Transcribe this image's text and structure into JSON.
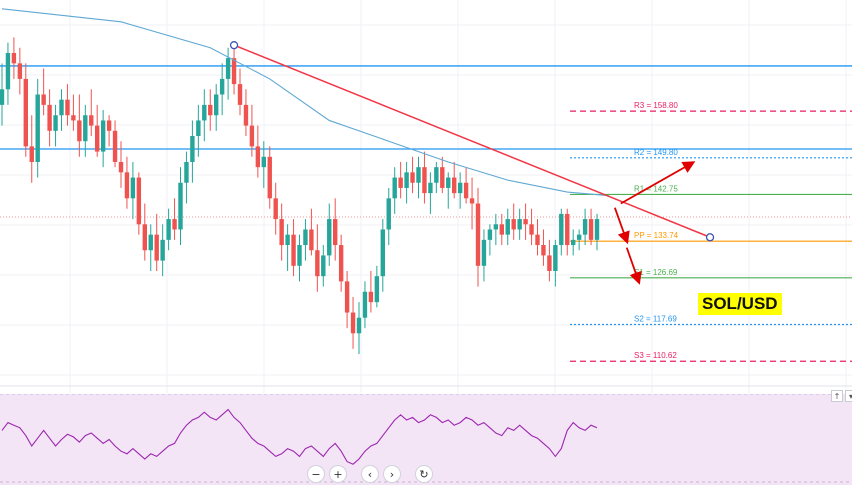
{
  "pair_label": "SOL/USD",
  "chart_data": {
    "type": "candlestick",
    "symbol": "SOL/USD",
    "colors": {
      "up": "#26a69a",
      "down": "#ef5350",
      "ma": "#5fa8d3",
      "trendline": "#f23645",
      "arrow": "#e00000",
      "pivot_r": "#e91e63",
      "pivot_r2": "#2196f3",
      "pivot_r1": "#4caf50",
      "pivot_pp": "#ff9800",
      "h_line": "#2196f3",
      "rsi_line": "#9c27b0",
      "rsi_bg": "#f3e5f5"
    },
    "pivots": [
      {
        "label": "R3 = 158.80",
        "value": 158.8,
        "style": "dashed",
        "color": "#e91e63"
      },
      {
        "label": "R2 = 149.80",
        "value": 149.8,
        "style": "dotted",
        "color": "#2196f3"
      },
      {
        "label": "R1 = 142.75",
        "value": 142.75,
        "style": "solid",
        "color": "#4caf50"
      },
      {
        "label": "PP = 133.74",
        "value": 133.74,
        "style": "solid",
        "color": "#ff9800"
      },
      {
        "label": "S1 = 126.69",
        "value": 126.69,
        "style": "solid",
        "color": "#4caf50"
      },
      {
        "label": "S2 = 117.69",
        "value": 117.69,
        "style": "dotted",
        "color": "#2196f3"
      },
      {
        "label": "S3 = 110.62",
        "value": 110.62,
        "style": "dashed",
        "color": "#e91e63"
      }
    ],
    "horizontal_levels": [
      167.5,
      151.5
    ],
    "trendline": {
      "start": {
        "i": 39,
        "v": 171.5
      },
      "end": {
        "i": 119,
        "v": 134.5
      }
    },
    "arrows": [
      {
        "from": {
          "i": 104,
          "v": 141.0
        },
        "to": {
          "i": 116,
          "v": 148.8
        }
      },
      {
        "from": {
          "i": 103,
          "v": 140.2
        },
        "to": {
          "i": 105,
          "v": 133.8
        }
      },
      {
        "from": {
          "i": 105,
          "v": 132.5
        },
        "to": {
          "i": 107,
          "v": 126.0
        }
      }
    ],
    "y_range": [
      104.5,
      180.2
    ],
    "candles": [
      [
        160,
        168,
        156,
        163
      ],
      [
        163,
        172,
        160,
        170
      ],
      [
        170,
        173,
        165,
        168
      ],
      [
        168,
        171,
        162,
        165
      ],
      [
        165,
        168,
        150,
        152
      ],
      [
        152,
        158,
        145,
        149
      ],
      [
        149,
        165,
        146,
        162
      ],
      [
        162,
        167,
        158,
        160
      ],
      [
        160,
        163,
        152,
        155
      ],
      [
        155,
        160,
        152,
        158
      ],
      [
        158,
        163,
        155,
        161
      ],
      [
        161,
        164,
        156,
        158
      ],
      [
        158,
        162,
        155,
        157
      ],
      [
        157,
        162,
        150,
        153
      ],
      [
        153,
        160,
        150,
        158
      ],
      [
        158,
        163,
        154,
        156
      ],
      [
        156,
        160,
        150,
        151
      ],
      [
        151,
        159,
        148,
        157
      ],
      [
        157,
        158,
        152,
        155
      ],
      [
        155,
        157,
        148,
        149
      ],
      [
        149,
        153,
        144,
        147
      ],
      [
        147,
        150,
        140,
        142
      ],
      [
        142,
        149,
        138,
        146
      ],
      [
        146,
        147,
        135,
        137
      ],
      [
        137,
        141,
        130,
        132
      ],
      [
        132,
        137,
        128,
        135
      ],
      [
        135,
        139,
        128,
        130
      ],
      [
        130,
        137,
        127,
        134
      ],
      [
        134,
        140,
        132,
        138
      ],
      [
        138,
        142,
        134,
        136
      ],
      [
        136,
        148,
        133,
        145
      ],
      [
        145,
        151,
        141,
        149
      ],
      [
        149,
        157,
        145,
        154
      ],
      [
        154,
        160,
        150,
        157
      ],
      [
        157,
        163,
        153,
        160
      ],
      [
        160,
        163,
        155,
        158
      ],
      [
        158,
        164,
        155,
        162
      ],
      [
        162,
        168,
        158,
        165
      ],
      [
        165,
        171,
        161,
        169
      ],
      [
        169,
        172,
        162,
        164
      ],
      [
        164,
        167,
        158,
        160
      ],
      [
        160,
        163,
        154,
        156
      ],
      [
        156,
        160,
        150,
        152
      ],
      [
        152,
        156,
        146,
        148
      ],
      [
        148,
        153,
        144,
        150
      ],
      [
        150,
        152,
        140,
        142
      ],
      [
        142,
        145,
        135,
        138
      ],
      [
        138,
        141,
        130,
        133
      ],
      [
        133,
        137,
        128,
        135
      ],
      [
        135,
        138,
        127,
        129
      ],
      [
        129,
        135,
        126,
        133
      ],
      [
        133,
        138,
        130,
        136
      ],
      [
        136,
        140,
        131,
        132
      ],
      [
        132,
        137,
        124,
        127
      ],
      [
        127,
        133,
        125,
        131
      ],
      [
        131,
        141,
        129,
        138
      ],
      [
        138,
        142,
        130,
        133
      ],
      [
        133,
        135,
        124,
        126
      ],
      [
        126,
        128,
        117,
        120
      ],
      [
        120,
        123,
        113,
        116
      ],
      [
        116,
        122,
        112,
        119
      ],
      [
        119,
        126,
        117,
        124
      ],
      [
        124,
        128,
        120,
        122
      ],
      [
        122,
        129,
        121,
        127
      ],
      [
        127,
        138,
        124,
        136
      ],
      [
        136,
        144,
        133,
        142
      ],
      [
        142,
        148,
        139,
        146
      ],
      [
        146,
        149,
        142,
        144
      ],
      [
        144,
        149,
        141,
        147
      ],
      [
        147,
        150,
        143,
        145
      ],
      [
        145,
        150,
        142,
        148
      ],
      [
        148,
        151,
        141,
        143
      ],
      [
        143,
        147,
        139,
        145
      ],
      [
        145,
        149,
        143,
        148
      ],
      [
        148,
        150,
        143,
        144
      ],
      [
        144,
        147,
        140,
        146
      ],
      [
        146,
        149,
        142,
        143
      ],
      [
        143,
        147,
        140,
        145
      ],
      [
        145,
        148,
        141,
        142
      ],
      [
        142,
        146,
        136,
        141
      ],
      [
        141,
        144,
        125,
        129
      ],
      [
        129,
        136,
        126,
        134
      ],
      [
        134,
        137,
        131,
        136
      ],
      [
        136,
        139,
        133,
        137
      ],
      [
        137,
        139,
        133,
        135
      ],
      [
        135,
        140,
        133,
        138
      ],
      [
        138,
        141,
        134,
        136
      ],
      [
        136,
        140,
        134,
        138
      ],
      [
        138,
        141,
        134,
        137
      ],
      [
        137,
        140,
        133,
        135
      ],
      [
        135,
        138,
        131,
        133
      ],
      [
        133,
        136,
        129,
        131
      ],
      [
        131,
        134,
        126,
        128
      ],
      [
        128,
        134,
        125,
        133
      ],
      [
        133,
        140,
        131,
        139
      ],
      [
        139,
        140,
        131,
        133
      ],
      [
        133,
        136,
        131,
        134
      ],
      [
        134,
        136,
        132,
        135
      ],
      [
        135,
        140,
        133,
        138
      ],
      [
        138,
        140,
        133,
        134
      ],
      [
        134,
        139,
        132,
        138
      ]
    ],
    "ma": [
      {
        "i": 0,
        "v": 178.5
      },
      {
        "i": 20,
        "v": 176
      },
      {
        "i": 35,
        "v": 171
      },
      {
        "i": 45,
        "v": 165
      },
      {
        "i": 55,
        "v": 157
      },
      {
        "i": 65,
        "v": 153
      },
      {
        "i": 75,
        "v": 149
      },
      {
        "i": 85,
        "v": 145.5
      },
      {
        "i": 95,
        "v": 143.2
      },
      {
        "i": 102,
        "v": 142.5
      }
    ],
    "rsi": [
      62,
      68,
      66,
      64,
      58,
      50,
      56,
      62,
      56,
      50,
      55,
      59,
      57,
      53,
      58,
      60,
      56,
      52,
      55,
      50,
      46,
      44,
      48,
      44,
      40,
      44,
      42,
      46,
      50,
      52,
      60,
      66,
      70,
      72,
      76,
      72,
      70,
      74,
      78,
      72,
      68,
      62,
      56,
      52,
      50,
      46,
      42,
      44,
      48,
      46,
      42,
      48,
      50,
      46,
      42,
      48,
      52,
      46,
      38,
      36,
      40,
      46,
      50,
      52,
      58,
      64,
      70,
      74,
      70,
      72,
      68,
      70,
      74,
      72,
      68,
      70,
      66,
      68,
      72,
      70,
      66,
      68,
      64,
      60,
      58,
      64,
      62,
      66,
      62,
      58,
      56,
      52,
      48,
      42,
      48,
      62,
      68,
      64,
      62,
      66,
      64
    ]
  }
}
